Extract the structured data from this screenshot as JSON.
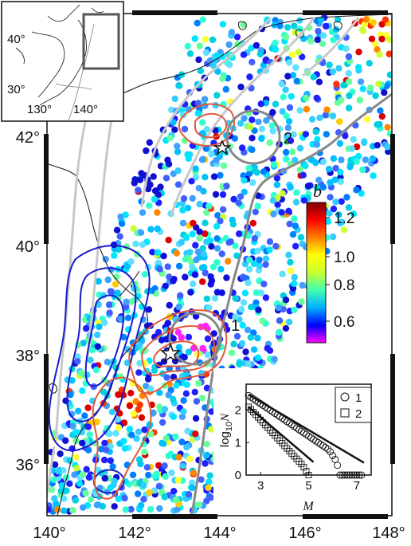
{
  "map": {
    "lon_labels": [
      "140°",
      "142°",
      "144°",
      "146°",
      "148°"
    ],
    "lat_labels": [
      "36°",
      "38°",
      "40°",
      "42°"
    ],
    "circle_labels": [
      "1",
      "2"
    ]
  },
  "inset": {
    "lat_labels": [
      "40°",
      "30°"
    ],
    "lon_labels": [
      "130°",
      "140°"
    ]
  },
  "colorbar": {
    "title": "b",
    "tick_labels": [
      "1.2",
      "1.0",
      "0.8",
      "0.6"
    ],
    "colors": [
      "#ff00ff",
      "#0000ff",
      "#00b0ff",
      "#40ffb0",
      "#c8ff30",
      "#ffff00",
      "#ff8000",
      "#ff0000",
      "#800000"
    ]
  },
  "plot": {
    "ylabel": "log10N",
    "ylabel_main": "log",
    "ylabel_sub": "10",
    "ylabel_end": "N",
    "xlabel": "M",
    "x_ticks": [
      "3",
      "5",
      "7"
    ],
    "y_ticks": [
      "0",
      "1",
      "2"
    ],
    "legend": [
      {
        "marker": "circle",
        "label": "1"
      },
      {
        "marker": "square",
        "label": "2"
      }
    ]
  },
  "chart_data": {
    "type": "scatter",
    "xlabel": "M",
    "ylabel": "log10N",
    "xlim": [
      2.4,
      7.6
    ],
    "ylim": [
      0,
      2.8
    ],
    "series": [
      {
        "name": "1",
        "marker": "circle",
        "x": [
          2.5,
          2.6,
          2.7,
          2.8,
          2.9,
          3.0,
          3.1,
          3.2,
          3.3,
          3.4,
          3.5,
          3.6,
          3.7,
          3.8,
          3.9,
          4.0,
          4.1,
          4.2,
          4.3,
          4.4,
          4.5,
          4.6,
          4.7,
          4.8,
          4.9,
          5.0,
          5.1,
          5.2,
          5.3,
          5.4,
          5.5,
          5.6,
          5.7,
          5.8,
          5.9,
          6.0,
          6.1,
          6.2,
          6.3,
          6.4,
          6.5,
          6.6,
          6.7,
          6.8,
          6.9,
          7.0,
          7.1,
          7.2
        ],
        "y": [
          2.45,
          2.4,
          2.35,
          2.3,
          2.25,
          2.2,
          2.15,
          2.1,
          2.05,
          2.0,
          1.95,
          1.9,
          1.85,
          1.8,
          1.75,
          1.7,
          1.65,
          1.6,
          1.55,
          1.5,
          1.45,
          1.4,
          1.35,
          1.3,
          1.25,
          1.2,
          1.15,
          1.1,
          1.05,
          1.0,
          0.95,
          0.9,
          0.85,
          0.8,
          0.72,
          0.6,
          0.48,
          0.3,
          0.0,
          0.0,
          0.0,
          0.0,
          0.0,
          0.0,
          0.0,
          0.0,
          0.0,
          0.0
        ]
      },
      {
        "name": "2",
        "marker": "square",
        "x": [
          2.5,
          2.6,
          2.7,
          2.8,
          2.9,
          3.0,
          3.1,
          3.2,
          3.3,
          3.4,
          3.5,
          3.6,
          3.7,
          3.8,
          3.9,
          4.0,
          4.1,
          4.2,
          4.3,
          4.4,
          4.5,
          4.6,
          4.7,
          4.8,
          4.9,
          5.0
        ],
        "y": [
          2.1,
          2.02,
          1.94,
          1.86,
          1.78,
          1.7,
          1.62,
          1.54,
          1.46,
          1.38,
          1.3,
          1.22,
          1.14,
          1.06,
          0.98,
          0.9,
          0.82,
          0.74,
          0.66,
          0.58,
          0.5,
          0.42,
          0.34,
          0.24,
          0.12,
          0.0
        ]
      }
    ],
    "fit_lines": [
      {
        "series": "1",
        "x": [
          2.5,
          7.3
        ],
        "y": [
          2.48,
          0.38
        ]
      },
      {
        "series": "2",
        "x": [
          2.5,
          5.2
        ],
        "y": [
          2.1,
          0.4
        ]
      }
    ]
  }
}
